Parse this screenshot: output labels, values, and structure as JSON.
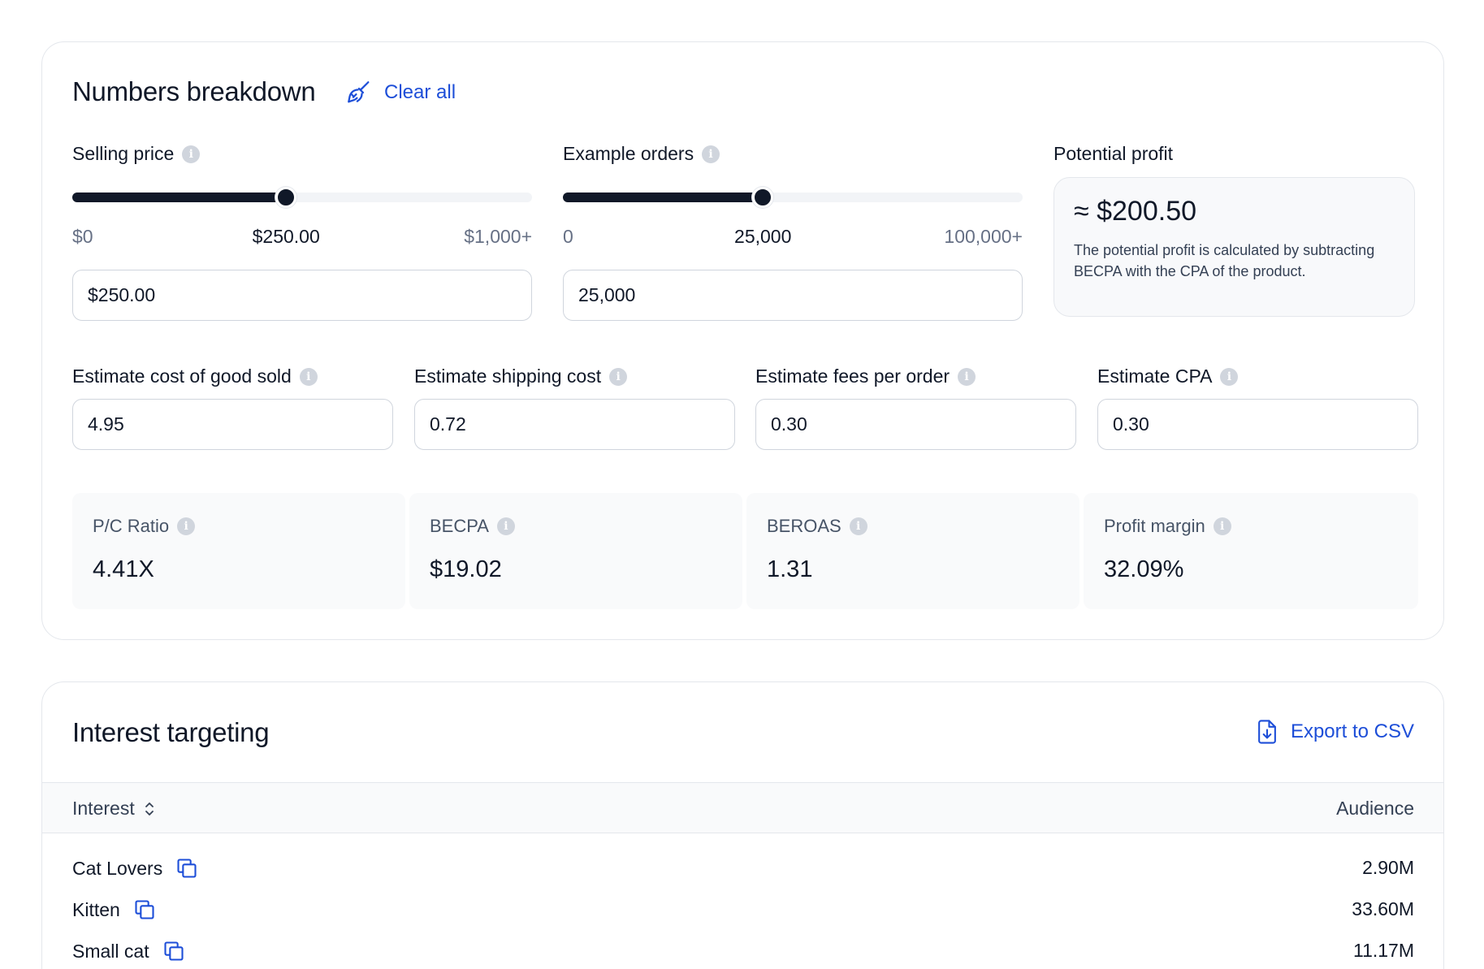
{
  "breakdown": {
    "title": "Numbers breakdown",
    "clear_all_label": "Clear all",
    "selling_price": {
      "label": "Selling price",
      "min_label": "$0",
      "current_label": "$250.00",
      "max_label": "$1,000+",
      "fraction": 0.465,
      "input_value": "$250.00"
    },
    "example_orders": {
      "label": "Example orders",
      "min_label": "0",
      "current_label": "25,000",
      "max_label": "100,000+",
      "fraction": 0.435,
      "input_value": "25,000"
    },
    "potential_profit": {
      "label": "Potential profit",
      "value": "≈ $200.50",
      "description": "The potential profit is calculated by subtracting BECPA with the CPA of the product."
    },
    "cost_fields": [
      {
        "label": "Estimate cost of good sold",
        "value": "4.95"
      },
      {
        "label": "Estimate shipping cost",
        "value": "0.72"
      },
      {
        "label": "Estimate fees per order",
        "value": "0.30"
      },
      {
        "label": "Estimate CPA",
        "value": "0.30"
      }
    ],
    "metrics": [
      {
        "label": "P/C Ratio",
        "value": "4.41X"
      },
      {
        "label": "BECPA",
        "value": "$19.02"
      },
      {
        "label": "BEROAS",
        "value": "1.31"
      },
      {
        "label": "Profit margin",
        "value": "32.09%"
      }
    ]
  },
  "interest_targeting": {
    "title": "Interest targeting",
    "export_label": "Export to CSV",
    "columns": {
      "interest": "Interest",
      "audience": "Audience"
    },
    "rows": [
      {
        "interest": "Cat Lovers",
        "audience": "2.90M"
      },
      {
        "interest": "Kitten",
        "audience": "33.60M"
      },
      {
        "interest": "Small cat",
        "audience": "11.17M"
      }
    ]
  },
  "colors": {
    "accent": "#1d4ed8",
    "dark": "#101828",
    "muted": "#667085",
    "border": "#e4e7ec"
  },
  "icons": {
    "clear_all": "broom-icon",
    "info": "info-icon",
    "export": "file-export-icon",
    "sort": "sort-icon",
    "copy": "copy-icon"
  }
}
